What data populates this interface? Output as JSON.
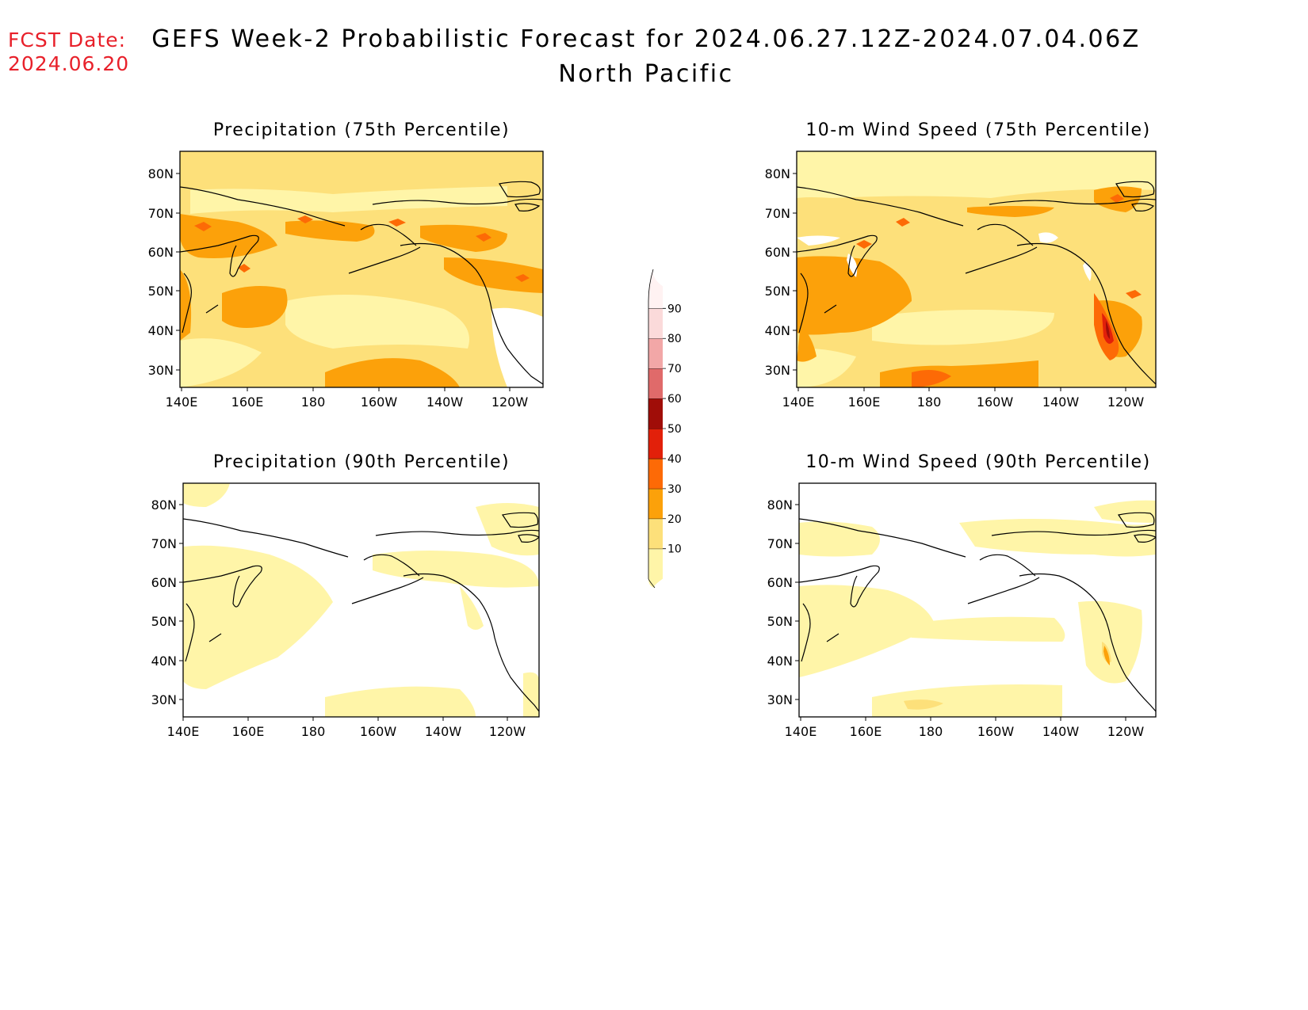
{
  "header": {
    "fcst_label": "FCST Date:",
    "fcst_date": "2024.06.20",
    "title": "GEFS Week-2 Probabilistic Forecast for 2024.06.27.12Z-2024.07.04.06Z",
    "region": "North Pacific"
  },
  "panels": [
    {
      "id": "precip75",
      "title": "Precipitation (75th Percentile)"
    },
    {
      "id": "wind75",
      "title": "10-m Wind Speed (75th Percentile)"
    },
    {
      "id": "precip90",
      "title": "Precipitation (90th Percentile)"
    },
    {
      "id": "wind90",
      "title": "10-m Wind Speed (90th Percentile)"
    }
  ],
  "axes": {
    "lon_labels": [
      "140E",
      "160E",
      "180",
      "160W",
      "140W",
      "120W"
    ],
    "lat_labels": [
      "80N",
      "70N",
      "60N",
      "50N",
      "40N",
      "30N"
    ]
  },
  "colorbar": {
    "levels": [
      "10",
      "20",
      "30",
      "40",
      "50",
      "60",
      "70",
      "80",
      "90"
    ],
    "colors": [
      "#fff5a8",
      "#fde07a",
      "#fca10a",
      "#fd6a06",
      "#e2200a",
      "#a00d08",
      "#e06a6a",
      "#f2a7a7",
      "#fbdada",
      "#fff2f2"
    ]
  },
  "fills": {
    "c1": "#fff5a8",
    "c2": "#fde07a",
    "c3": "#fca10a",
    "c4": "#fd6a06",
    "c5": "#e2200a",
    "c6": "#a00d08"
  }
}
